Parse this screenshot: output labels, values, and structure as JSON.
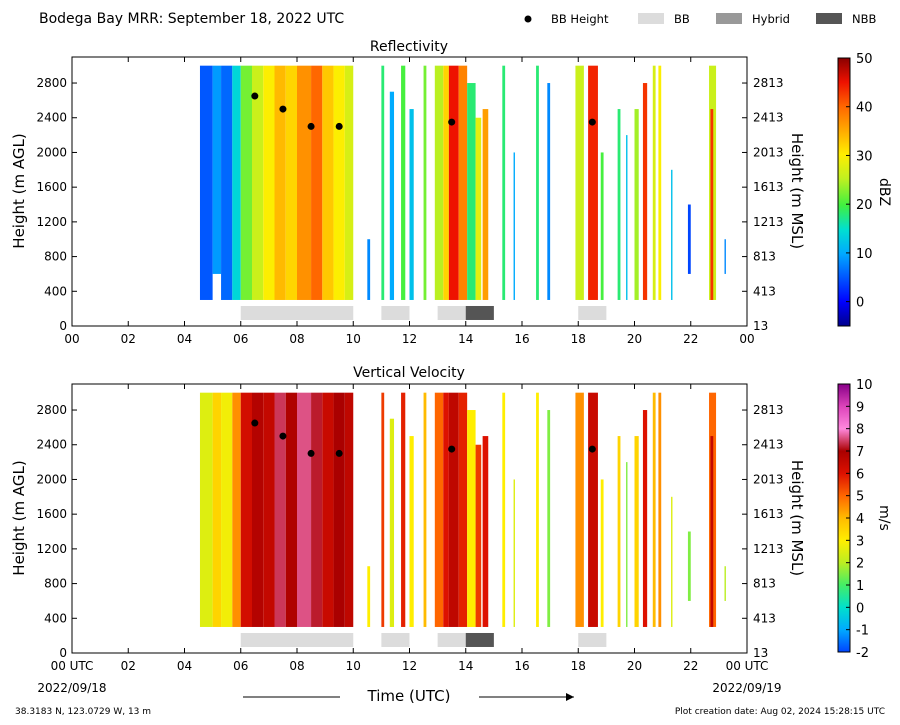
{
  "header": {
    "title": "Bodega Bay MRR:  September 18, 2022 UTC",
    "legend": [
      {
        "label": "BB Height",
        "symbol": "dot",
        "color": "#000000"
      },
      {
        "label": "BB",
        "symbol": "box",
        "color": "#dcdcdc"
      },
      {
        "label": "Hybrid",
        "symbol": "box",
        "color": "#999999"
      },
      {
        "label": "NBB",
        "symbol": "box",
        "color": "#555555"
      }
    ]
  },
  "footer": {
    "location": "38.3183 N, 123.0729 W, 13 m",
    "creation": "Plot creation date: Aug 02, 2024 15:28:15 UTC",
    "xlabel": "Time (UTC)",
    "start_date": "2022/09/18",
    "end_date": "2022/09/19"
  },
  "colors": {
    "bb": "#dcdcdc",
    "hybrid": "#999999",
    "nbb": "#555555",
    "bb_dot": "#000000"
  },
  "chart_data": [
    {
      "type": "heatmap",
      "title": "Reflectivity",
      "ylabel": "Height (m AGL)",
      "ylabel_right": "Height (m MSL)",
      "colorbar_label": "dBZ",
      "colorbar_range": [
        -5,
        50
      ],
      "colorbar_ticks": [
        "0",
        "10",
        "20",
        "30",
        "40",
        "50"
      ],
      "colorbar_tick_values": [
        0,
        10,
        20,
        30,
        40,
        50
      ],
      "xlim": [
        0,
        24
      ],
      "ylim": [
        0,
        3100
      ],
      "x_ticks": [
        "00",
        "02",
        "04",
        "06",
        "08",
        "10",
        "12",
        "14",
        "16",
        "18",
        "20",
        "22",
        "00"
      ],
      "y_ticks": [
        "0",
        "400",
        "800",
        "1200",
        "1600",
        "2000",
        "2400",
        "2800"
      ],
      "y_ticks_right": [
        "13",
        "413",
        "813",
        "1213",
        "1613",
        "2013",
        "2413",
        "2813"
      ],
      "bb_height_points": [
        {
          "x": 6.5,
          "y": 2650
        },
        {
          "x": 7.5,
          "y": 2500
        },
        {
          "x": 8.5,
          "y": 2300
        },
        {
          "x": 9.5,
          "y": 2300
        },
        {
          "x": 13.5,
          "y": 2350
        },
        {
          "x": 18.5,
          "y": 2350
        }
      ],
      "bb_segments": [
        {
          "start": 6.0,
          "end": 10.0,
          "kind": "BB"
        },
        {
          "start": 11.0,
          "end": 12.0,
          "kind": "BB"
        },
        {
          "start": 13.0,
          "end": 14.0,
          "kind": "BB"
        },
        {
          "start": 14.0,
          "end": 15.0,
          "kind": "NBB"
        },
        {
          "start": 18.0,
          "end": 19.0,
          "kind": "BB"
        }
      ],
      "echo_columns": [
        {
          "start": 4.55,
          "end": 5.0,
          "top": 3000,
          "bottom": 300,
          "value": 5
        },
        {
          "start": 5.0,
          "end": 5.3,
          "top": 3000,
          "bottom": 600,
          "value": 9
        },
        {
          "start": 5.3,
          "end": 5.7,
          "top": 3000,
          "bottom": 300,
          "value": 6
        },
        {
          "start": 5.7,
          "end": 6.0,
          "top": 3000,
          "bottom": 300,
          "value": 14
        },
        {
          "start": 6.0,
          "end": 6.4,
          "top": 3000,
          "bottom": 300,
          "value": 22
        },
        {
          "start": 6.4,
          "end": 6.8,
          "top": 3000,
          "bottom": 300,
          "value": 26
        },
        {
          "start": 6.8,
          "end": 7.2,
          "top": 3000,
          "bottom": 300,
          "value": 30
        },
        {
          "start": 7.2,
          "end": 7.6,
          "top": 3000,
          "bottom": 300,
          "value": 34
        },
        {
          "start": 7.6,
          "end": 8.0,
          "top": 3000,
          "bottom": 300,
          "value": 32
        },
        {
          "start": 8.0,
          "end": 8.5,
          "top": 3000,
          "bottom": 300,
          "value": 37
        },
        {
          "start": 8.5,
          "end": 8.9,
          "top": 3000,
          "bottom": 300,
          "value": 40
        },
        {
          "start": 8.9,
          "end": 9.3,
          "top": 3000,
          "bottom": 300,
          "value": 33
        },
        {
          "start": 9.3,
          "end": 9.7,
          "top": 3000,
          "bottom": 300,
          "value": 30
        },
        {
          "start": 9.7,
          "end": 10.0,
          "top": 3000,
          "bottom": 300,
          "value": 27
        },
        {
          "start": 10.5,
          "end": 10.6,
          "top": 1000,
          "bottom": 300,
          "value": 8
        },
        {
          "start": 11.0,
          "end": 11.1,
          "top": 3000,
          "bottom": 300,
          "value": 18
        },
        {
          "start": 11.3,
          "end": 11.45,
          "top": 2700,
          "bottom": 300,
          "value": 10
        },
        {
          "start": 11.7,
          "end": 11.85,
          "top": 3000,
          "bottom": 300,
          "value": 20
        },
        {
          "start": 12.0,
          "end": 12.15,
          "top": 2500,
          "bottom": 300,
          "value": 12
        },
        {
          "start": 12.5,
          "end": 12.6,
          "top": 3000,
          "bottom": 300,
          "value": 22
        },
        {
          "start": 12.9,
          "end": 13.2,
          "top": 3000,
          "bottom": 300,
          "value": 25
        },
        {
          "start": 13.2,
          "end": 13.4,
          "top": 3000,
          "bottom": 300,
          "value": 32
        },
        {
          "start": 13.4,
          "end": 13.75,
          "top": 3000,
          "bottom": 300,
          "value": 45
        },
        {
          "start": 13.75,
          "end": 14.05,
          "top": 3000,
          "bottom": 300,
          "value": 38
        },
        {
          "start": 14.05,
          "end": 14.35,
          "top": 2800,
          "bottom": 300,
          "value": 18
        },
        {
          "start": 14.35,
          "end": 14.55,
          "top": 2400,
          "bottom": 300,
          "value": 28
        },
        {
          "start": 14.6,
          "end": 14.8,
          "top": 2500,
          "bottom": 300,
          "value": 36
        },
        {
          "start": 15.3,
          "end": 15.4,
          "top": 3000,
          "bottom": 300,
          "value": 18
        },
        {
          "start": 15.7,
          "end": 15.75,
          "top": 2000,
          "bottom": 300,
          "value": 10
        },
        {
          "start": 16.5,
          "end": 16.6,
          "top": 3000,
          "bottom": 300,
          "value": 18
        },
        {
          "start": 16.9,
          "end": 17.0,
          "top": 2800,
          "bottom": 300,
          "value": 8
        },
        {
          "start": 17.9,
          "end": 18.2,
          "top": 3000,
          "bottom": 300,
          "value": 26
        },
        {
          "start": 18.35,
          "end": 18.7,
          "top": 3000,
          "bottom": 300,
          "value": 44
        },
        {
          "start": 18.8,
          "end": 18.9,
          "top": 2000,
          "bottom": 300,
          "value": 20
        },
        {
          "start": 19.4,
          "end": 19.5,
          "top": 2500,
          "bottom": 300,
          "value": 18
        },
        {
          "start": 19.7,
          "end": 19.75,
          "top": 2200,
          "bottom": 300,
          "value": 12
        },
        {
          "start": 20.0,
          "end": 20.15,
          "top": 2500,
          "bottom": 300,
          "value": 24
        },
        {
          "start": 20.3,
          "end": 20.45,
          "top": 2800,
          "bottom": 300,
          "value": 43
        },
        {
          "start": 20.65,
          "end": 20.75,
          "top": 3000,
          "bottom": 300,
          "value": 27
        },
        {
          "start": 20.85,
          "end": 20.95,
          "top": 3000,
          "bottom": 300,
          "value": 30
        },
        {
          "start": 21.3,
          "end": 21.35,
          "top": 1800,
          "bottom": 300,
          "value": 12
        },
        {
          "start": 21.9,
          "end": 22.0,
          "top": 1400,
          "bottom": 600,
          "value": 4
        },
        {
          "start": 22.65,
          "end": 22.9,
          "top": 3000,
          "bottom": 300,
          "value": 26
        },
        {
          "start": 22.7,
          "end": 22.8,
          "top": 2500,
          "bottom": 300,
          "value": 43
        },
        {
          "start": 23.2,
          "end": 23.25,
          "top": 1000,
          "bottom": 600,
          "value": 8
        }
      ]
    },
    {
      "type": "heatmap",
      "title": "Vertical Velocity",
      "ylabel": "Height (m AGL)",
      "ylabel_right": "Height (m MSL)",
      "colorbar_label": "m/s",
      "colorbar_range": [
        -2,
        10
      ],
      "colorbar_ticks": [
        "-2",
        "-1",
        "0",
        "1",
        "2",
        "3",
        "4",
        "5",
        "6",
        "7",
        "8",
        "9",
        "10"
      ],
      "colorbar_tick_values": [
        -2,
        -1,
        0,
        1,
        2,
        3,
        4,
        5,
        6,
        7,
        8,
        9,
        10
      ],
      "xlim": [
        0,
        24
      ],
      "ylim": [
        0,
        3100
      ],
      "x_ticks": [
        "00 UTC",
        "02",
        "04",
        "06",
        "08",
        "10",
        "12",
        "14",
        "16",
        "18",
        "20",
        "22",
        "00 UTC"
      ],
      "y_ticks": [
        "0",
        "400",
        "800",
        "1200",
        "1600",
        "2000",
        "2400",
        "2800"
      ],
      "y_ticks_right": [
        "13",
        "413",
        "813",
        "1213",
        "1613",
        "2013",
        "2413",
        "2813"
      ],
      "bb_height_points": [
        {
          "x": 6.5,
          "y": 2650
        },
        {
          "x": 7.5,
          "y": 2500
        },
        {
          "x": 8.5,
          "y": 2300
        },
        {
          "x": 9.5,
          "y": 2300
        },
        {
          "x": 13.5,
          "y": 2350
        },
        {
          "x": 18.5,
          "y": 2350
        }
      ],
      "bb_segments": [
        {
          "start": 6.0,
          "end": 10.0,
          "kind": "BB"
        },
        {
          "start": 11.0,
          "end": 12.0,
          "kind": "BB"
        },
        {
          "start": 13.0,
          "end": 14.0,
          "kind": "BB"
        },
        {
          "start": 14.0,
          "end": 15.0,
          "kind": "NBB"
        },
        {
          "start": 18.0,
          "end": 19.0,
          "kind": "BB"
        }
      ],
      "echo_columns": [
        {
          "start": 4.55,
          "end": 5.0,
          "top": 3000,
          "bottom": 300,
          "value": 2.5
        },
        {
          "start": 5.0,
          "end": 5.3,
          "top": 3000,
          "bottom": 300,
          "value": 3.5
        },
        {
          "start": 5.3,
          "end": 5.7,
          "top": 3000,
          "bottom": 300,
          "value": 2.8
        },
        {
          "start": 5.7,
          "end": 6.0,
          "top": 3000,
          "bottom": 300,
          "value": 4.5
        },
        {
          "start": 6.0,
          "end": 6.4,
          "top": 3000,
          "bottom": 300,
          "value": 6.2
        },
        {
          "start": 6.4,
          "end": 6.8,
          "top": 3000,
          "bottom": 300,
          "value": 6.8
        },
        {
          "start": 6.8,
          "end": 7.2,
          "top": 3000,
          "bottom": 300,
          "value": 6.5
        },
        {
          "start": 7.2,
          "end": 7.6,
          "top": 3000,
          "bottom": 300,
          "value": 7.4
        },
        {
          "start": 7.6,
          "end": 8.0,
          "top": 3000,
          "bottom": 300,
          "value": 6.9
        },
        {
          "start": 8.0,
          "end": 8.5,
          "top": 3000,
          "bottom": 300,
          "value": 7.6
        },
        {
          "start": 8.5,
          "end": 8.9,
          "top": 3000,
          "bottom": 300,
          "value": 7.2
        },
        {
          "start": 8.9,
          "end": 9.3,
          "top": 3000,
          "bottom": 300,
          "value": 6.4
        },
        {
          "start": 9.3,
          "end": 9.7,
          "top": 3000,
          "bottom": 300,
          "value": 7.0
        },
        {
          "start": 9.7,
          "end": 10.0,
          "top": 3000,
          "bottom": 300,
          "value": 6.6
        },
        {
          "start": 10.5,
          "end": 10.6,
          "top": 1000,
          "bottom": 300,
          "value": 3.0
        },
        {
          "start": 11.0,
          "end": 11.1,
          "top": 3000,
          "bottom": 300,
          "value": 5.5
        },
        {
          "start": 11.3,
          "end": 11.45,
          "top": 2700,
          "bottom": 300,
          "value": 2.5
        },
        {
          "start": 11.7,
          "end": 11.85,
          "top": 3000,
          "bottom": 300,
          "value": 5.8
        },
        {
          "start": 12.0,
          "end": 12.15,
          "top": 2500,
          "bottom": 300,
          "value": 3.0
        },
        {
          "start": 12.5,
          "end": 12.6,
          "top": 3000,
          "bottom": 300,
          "value": 4.0
        },
        {
          "start": 12.9,
          "end": 13.2,
          "top": 3000,
          "bottom": 300,
          "value": 5.0
        },
        {
          "start": 13.2,
          "end": 13.4,
          "top": 3000,
          "bottom": 300,
          "value": 6.0
        },
        {
          "start": 13.4,
          "end": 13.75,
          "top": 3000,
          "bottom": 300,
          "value": 6.6
        },
        {
          "start": 13.75,
          "end": 14.05,
          "top": 3000,
          "bottom": 300,
          "value": 5.8
        },
        {
          "start": 14.05,
          "end": 14.35,
          "top": 2800,
          "bottom": 300,
          "value": 3.0
        },
        {
          "start": 14.35,
          "end": 14.55,
          "top": 2400,
          "bottom": 300,
          "value": 5.5
        },
        {
          "start": 14.6,
          "end": 14.8,
          "top": 2500,
          "bottom": 300,
          "value": 6.0
        },
        {
          "start": 15.3,
          "end": 15.4,
          "top": 3000,
          "bottom": 300,
          "value": 3.0
        },
        {
          "start": 15.7,
          "end": 15.75,
          "top": 2000,
          "bottom": 300,
          "value": 2.5
        },
        {
          "start": 16.5,
          "end": 16.6,
          "top": 3000,
          "bottom": 300,
          "value": 3.0
        },
        {
          "start": 16.9,
          "end": 17.0,
          "top": 2800,
          "bottom": 300,
          "value": 1.5
        },
        {
          "start": 17.9,
          "end": 18.2,
          "top": 3000,
          "bottom": 300,
          "value": 4.5
        },
        {
          "start": 18.35,
          "end": 18.7,
          "top": 3000,
          "bottom": 300,
          "value": 6.4
        },
        {
          "start": 18.8,
          "end": 18.9,
          "top": 2000,
          "bottom": 300,
          "value": 3.0
        },
        {
          "start": 19.4,
          "end": 19.5,
          "top": 2500,
          "bottom": 300,
          "value": 3.5
        },
        {
          "start": 19.7,
          "end": 19.75,
          "top": 2200,
          "bottom": 300,
          "value": 1.5
        },
        {
          "start": 20.0,
          "end": 20.15,
          "top": 2500,
          "bottom": 300,
          "value": 3.5
        },
        {
          "start": 20.3,
          "end": 20.45,
          "top": 2800,
          "bottom": 300,
          "value": 6.0
        },
        {
          "start": 20.65,
          "end": 20.75,
          "top": 3000,
          "bottom": 300,
          "value": 4.0
        },
        {
          "start": 20.85,
          "end": 20.95,
          "top": 3000,
          "bottom": 300,
          "value": 4.5
        },
        {
          "start": 21.3,
          "end": 21.35,
          "top": 1800,
          "bottom": 300,
          "value": 2.5
        },
        {
          "start": 21.9,
          "end": 22.0,
          "top": 1400,
          "bottom": 600,
          "value": 1.5
        },
        {
          "start": 22.65,
          "end": 22.9,
          "top": 3000,
          "bottom": 300,
          "value": 5.0
        },
        {
          "start": 22.7,
          "end": 22.8,
          "top": 2500,
          "bottom": 300,
          "value": 6.5
        },
        {
          "start": 23.2,
          "end": 23.25,
          "top": 1000,
          "bottom": 600,
          "value": 2.0
        }
      ]
    }
  ]
}
